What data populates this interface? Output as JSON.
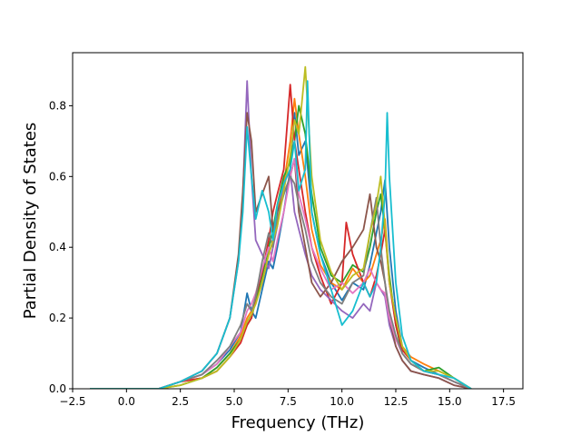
{
  "chart_data": {
    "type": "line",
    "xlabel": "Frequency (THz)",
    "ylabel": "Partial Density of States",
    "xlim": [
      -2.5,
      18.4
    ],
    "ylim": [
      0.0,
      0.95
    ],
    "xticks": [
      -2.5,
      0.0,
      2.5,
      5.0,
      7.5,
      10.0,
      12.5,
      15.0,
      17.5
    ],
    "xtick_labels": [
      "−2.5",
      "0.0",
      "2.5",
      "5.0",
      "7.5",
      "10.0",
      "12.5",
      "15.0",
      "17.5"
    ],
    "yticks": [
      0.0,
      0.2,
      0.4,
      0.6,
      0.8
    ],
    "ytick_labels": [
      "0.0",
      "0.2",
      "0.4",
      "0.6",
      "0.8"
    ],
    "grid": false,
    "legend": "none",
    "series": [
      {
        "color": "#1f77b4",
        "x": [
          -1.7,
          1.5,
          2.5,
          3.5,
          4.2,
          4.8,
          5.3,
          5.6,
          5.8,
          6.0,
          6.3,
          6.6,
          6.8,
          7.0,
          7.3,
          7.6,
          7.8,
          8.0,
          8.3,
          8.6,
          9.0,
          9.5,
          10.0,
          10.5,
          11.0,
          11.3,
          11.6,
          11.8,
          12.0,
          12.2,
          12.5,
          12.8,
          13.2,
          13.8,
          14.5,
          15.2,
          16.0
        ],
        "y": [
          0.0,
          0.0,
          0.02,
          0.04,
          0.07,
          0.11,
          0.16,
          0.27,
          0.22,
          0.2,
          0.28,
          0.36,
          0.34,
          0.4,
          0.5,
          0.62,
          0.78,
          0.66,
          0.7,
          0.5,
          0.38,
          0.3,
          0.25,
          0.3,
          0.28,
          0.35,
          0.44,
          0.5,
          0.59,
          0.4,
          0.22,
          0.12,
          0.08,
          0.06,
          0.04,
          0.02,
          0.0
        ]
      },
      {
        "color": "#ff7f0e",
        "x": [
          -1.7,
          1.5,
          2.5,
          3.5,
          4.2,
          4.8,
          5.3,
          5.6,
          5.8,
          6.0,
          6.3,
          6.6,
          6.8,
          7.0,
          7.3,
          7.6,
          7.8,
          8.0,
          8.3,
          8.6,
          9.0,
          9.5,
          10.0,
          10.5,
          11.0,
          11.3,
          11.6,
          11.8,
          12.0,
          12.2,
          12.5,
          12.8,
          13.2,
          13.8,
          14.5,
          15.2,
          16.0
        ],
        "y": [
          0.0,
          0.0,
          0.02,
          0.03,
          0.06,
          0.1,
          0.15,
          0.2,
          0.22,
          0.24,
          0.3,
          0.38,
          0.42,
          0.5,
          0.58,
          0.7,
          0.82,
          0.72,
          0.6,
          0.45,
          0.35,
          0.3,
          0.28,
          0.34,
          0.3,
          0.32,
          0.38,
          0.42,
          0.48,
          0.3,
          0.2,
          0.12,
          0.09,
          0.07,
          0.05,
          0.03,
          0.0
        ]
      },
      {
        "color": "#2ca02c",
        "x": [
          -1.7,
          1.5,
          2.5,
          3.5,
          4.2,
          4.8,
          5.3,
          5.6,
          5.8,
          6.0,
          6.3,
          6.6,
          6.8,
          7.0,
          7.3,
          7.6,
          7.8,
          8.0,
          8.3,
          8.6,
          9.0,
          9.5,
          10.0,
          10.5,
          11.0,
          11.3,
          11.6,
          11.8,
          12.0,
          12.2,
          12.5,
          12.8,
          13.2,
          13.8,
          14.5,
          15.2,
          16.0
        ],
        "y": [
          0.0,
          0.0,
          0.01,
          0.03,
          0.06,
          0.1,
          0.14,
          0.18,
          0.2,
          0.25,
          0.32,
          0.4,
          0.45,
          0.52,
          0.6,
          0.64,
          0.7,
          0.8,
          0.72,
          0.55,
          0.4,
          0.32,
          0.3,
          0.35,
          0.33,
          0.4,
          0.5,
          0.55,
          0.45,
          0.32,
          0.18,
          0.1,
          0.07,
          0.05,
          0.06,
          0.03,
          0.0
        ]
      },
      {
        "color": "#d62728",
        "x": [
          -1.7,
          1.5,
          2.5,
          3.5,
          4.2,
          4.8,
          5.3,
          5.6,
          5.8,
          6.0,
          6.3,
          6.6,
          6.8,
          7.0,
          7.3,
          7.6,
          7.8,
          8.0,
          8.3,
          8.6,
          9.0,
          9.5,
          10.0,
          10.2,
          10.5,
          11.0,
          11.3,
          11.6,
          11.8,
          12.0,
          12.2,
          12.5,
          12.8,
          13.2,
          13.8,
          14.5,
          15.2,
          16.0
        ],
        "y": [
          0.0,
          0.0,
          0.02,
          0.03,
          0.05,
          0.09,
          0.13,
          0.18,
          0.2,
          0.26,
          0.33,
          0.42,
          0.5,
          0.55,
          0.62,
          0.86,
          0.7,
          0.62,
          0.5,
          0.4,
          0.32,
          0.24,
          0.3,
          0.47,
          0.38,
          0.3,
          0.26,
          0.32,
          0.38,
          0.45,
          0.3,
          0.18,
          0.11,
          0.08,
          0.05,
          0.04,
          0.02,
          0.0
        ]
      },
      {
        "color": "#9467bd",
        "x": [
          -1.7,
          1.5,
          2.5,
          3.5,
          4.2,
          4.8,
          5.2,
          5.4,
          5.6,
          5.8,
          6.0,
          6.3,
          6.6,
          6.8,
          7.0,
          7.3,
          7.6,
          7.8,
          8.0,
          8.3,
          8.6,
          9.0,
          9.5,
          10.0,
          10.5,
          11.0,
          11.3,
          11.6,
          11.8,
          12.0,
          12.2,
          12.5,
          12.8,
          13.2,
          13.8,
          14.5,
          15.2,
          16.0
        ],
        "y": [
          0.0,
          0.0,
          0.02,
          0.05,
          0.1,
          0.2,
          0.36,
          0.55,
          0.87,
          0.6,
          0.42,
          0.38,
          0.34,
          0.4,
          0.46,
          0.58,
          0.62,
          0.5,
          0.45,
          0.38,
          0.32,
          0.28,
          0.25,
          0.22,
          0.2,
          0.24,
          0.22,
          0.3,
          0.28,
          0.26,
          0.18,
          0.12,
          0.08,
          0.05,
          0.04,
          0.03,
          0.01,
          0.0
        ]
      },
      {
        "color": "#8c564b",
        "x": [
          -1.7,
          1.5,
          2.5,
          3.5,
          4.2,
          4.8,
          5.2,
          5.4,
          5.6,
          5.8,
          6.0,
          6.3,
          6.6,
          6.8,
          7.0,
          7.3,
          7.6,
          7.8,
          8.0,
          8.3,
          8.6,
          9.0,
          9.5,
          10.0,
          10.5,
          11.0,
          11.3,
          11.6,
          11.8,
          12.0,
          12.2,
          12.5,
          12.8,
          13.2,
          13.8,
          14.5,
          15.2,
          16.0
        ],
        "y": [
          0.0,
          0.0,
          0.02,
          0.05,
          0.1,
          0.2,
          0.38,
          0.56,
          0.78,
          0.7,
          0.5,
          0.55,
          0.6,
          0.45,
          0.5,
          0.55,
          0.6,
          0.65,
          0.5,
          0.4,
          0.3,
          0.26,
          0.3,
          0.36,
          0.4,
          0.45,
          0.55,
          0.4,
          0.36,
          0.3,
          0.2,
          0.12,
          0.08,
          0.05,
          0.04,
          0.03,
          0.01,
          0.0
        ]
      },
      {
        "color": "#e377c2",
        "x": [
          -1.7,
          1.5,
          2.5,
          3.5,
          4.2,
          4.8,
          5.3,
          5.6,
          5.8,
          6.0,
          6.3,
          6.6,
          6.8,
          7.0,
          7.3,
          7.6,
          7.8,
          8.0,
          8.3,
          8.6,
          9.0,
          9.5,
          10.0,
          10.5,
          11.0,
          11.3,
          11.6,
          11.8,
          12.0,
          12.2,
          12.5,
          12.8,
          13.2,
          13.8,
          14.5,
          15.2,
          16.0
        ],
        "y": [
          0.0,
          0.0,
          0.02,
          0.04,
          0.07,
          0.12,
          0.16,
          0.22,
          0.24,
          0.27,
          0.34,
          0.4,
          0.36,
          0.42,
          0.5,
          0.6,
          0.65,
          0.55,
          0.48,
          0.4,
          0.34,
          0.28,
          0.3,
          0.27,
          0.3,
          0.34,
          0.3,
          0.28,
          0.27,
          0.2,
          0.14,
          0.1,
          0.07,
          0.05,
          0.04,
          0.02,
          0.0
        ]
      },
      {
        "color": "#7f7f7f",
        "x": [
          -1.7,
          1.5,
          2.5,
          3.5,
          4.2,
          4.8,
          5.3,
          5.6,
          5.8,
          6.0,
          6.3,
          6.6,
          6.8,
          7.0,
          7.3,
          7.6,
          7.8,
          8.0,
          8.3,
          8.6,
          9.0,
          9.5,
          10.0,
          10.5,
          11.0,
          11.3,
          11.6,
          11.8,
          12.0,
          12.2,
          12.5,
          12.8,
          13.2,
          13.8,
          14.5,
          15.2,
          16.0
        ],
        "y": [
          0.0,
          0.0,
          0.02,
          0.04,
          0.08,
          0.12,
          0.18,
          0.24,
          0.22,
          0.26,
          0.36,
          0.44,
          0.4,
          0.48,
          0.55,
          0.6,
          0.58,
          0.52,
          0.45,
          0.36,
          0.3,
          0.26,
          0.24,
          0.3,
          0.32,
          0.44,
          0.54,
          0.4,
          0.3,
          0.22,
          0.15,
          0.1,
          0.07,
          0.05,
          0.04,
          0.02,
          0.0
        ]
      },
      {
        "color": "#bcbd22",
        "x": [
          -1.7,
          1.5,
          2.5,
          3.5,
          4.2,
          4.8,
          5.3,
          5.6,
          5.8,
          6.0,
          6.3,
          6.6,
          6.8,
          7.0,
          7.3,
          7.6,
          7.8,
          8.0,
          8.3,
          8.6,
          9.0,
          9.5,
          10.0,
          10.5,
          11.0,
          11.3,
          11.6,
          11.8,
          12.0,
          12.2,
          12.5,
          12.8,
          13.2,
          13.8,
          14.5,
          15.2,
          16.0
        ],
        "y": [
          0.0,
          0.0,
          0.01,
          0.03,
          0.05,
          0.09,
          0.14,
          0.19,
          0.21,
          0.24,
          0.3,
          0.38,
          0.42,
          0.46,
          0.56,
          0.66,
          0.76,
          0.72,
          0.91,
          0.6,
          0.42,
          0.33,
          0.28,
          0.32,
          0.34,
          0.44,
          0.52,
          0.6,
          0.46,
          0.3,
          0.2,
          0.12,
          0.08,
          0.05,
          0.05,
          0.03,
          0.0
        ]
      },
      {
        "color": "#17becf",
        "x": [
          -1.7,
          1.5,
          2.5,
          3.5,
          4.2,
          4.8,
          5.2,
          5.4,
          5.6,
          5.8,
          6.0,
          6.3,
          6.6,
          6.8,
          7.0,
          7.3,
          7.6,
          7.8,
          8.0,
          8.3,
          8.4,
          8.6,
          9.0,
          9.5,
          10.0,
          10.5,
          11.0,
          11.3,
          11.6,
          11.8,
          12.0,
          12.1,
          12.2,
          12.5,
          12.8,
          13.2,
          13.8,
          14.5,
          15.2,
          16.0
        ],
        "y": [
          0.0,
          0.0,
          0.02,
          0.05,
          0.1,
          0.2,
          0.36,
          0.5,
          0.74,
          0.6,
          0.48,
          0.56,
          0.5,
          0.42,
          0.52,
          0.58,
          0.62,
          0.7,
          0.56,
          0.62,
          0.87,
          0.5,
          0.38,
          0.28,
          0.18,
          0.22,
          0.3,
          0.26,
          0.3,
          0.4,
          0.55,
          0.78,
          0.6,
          0.3,
          0.15,
          0.08,
          0.05,
          0.04,
          0.03,
          0.0
        ]
      }
    ]
  }
}
